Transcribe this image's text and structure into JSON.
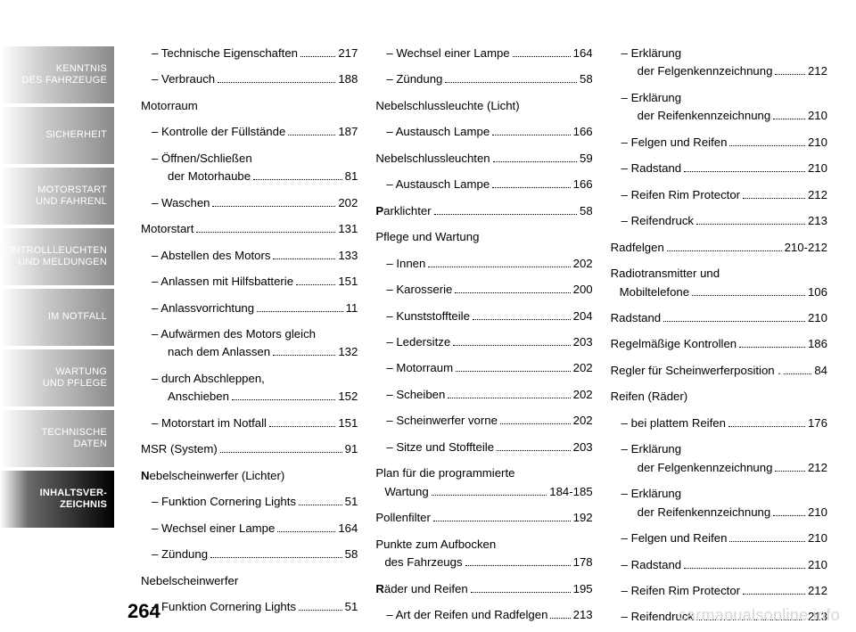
{
  "pagenum": "264",
  "watermark": "carmanualsonline.info",
  "sidebar": {
    "tabs": [
      {
        "label": "KENNTNIS\nDES FAHRZEUGE",
        "active": false
      },
      {
        "label": "SICHERHEIT",
        "active": false
      },
      {
        "label": "MOTORSTART\nUND FAHRENL",
        "active": false
      },
      {
        "label": "KONTROLLLEUCHTEN\nUND MELDUNGEN",
        "active": false
      },
      {
        "label": "IM NOTFALL",
        "active": false
      },
      {
        "label": "WARTUNG\nUND PFLEGE",
        "active": false
      },
      {
        "label": "TECHNISCHE\nDATEN",
        "active": false
      },
      {
        "label": "INHALTSVER-\nZEICHNIS",
        "active": true
      }
    ]
  },
  "columns": [
    [
      {
        "type": "sub",
        "label": "Technische Eigenschaften",
        "page": "217"
      },
      {
        "type": "sub",
        "label": "Verbrauch",
        "page": "188"
      },
      {
        "type": "section",
        "label": "Motorraum"
      },
      {
        "type": "sub",
        "label": "Kontrolle der Füllstände",
        "page": "187"
      },
      {
        "type": "sub-wrap",
        "label": "Öffnen/Schließen",
        "label2": "der Motorhaube",
        "page": "81"
      },
      {
        "type": "sub",
        "label": "Waschen",
        "page": "202"
      },
      {
        "type": "top",
        "label": "Motorstart",
        "page": "131"
      },
      {
        "type": "sub",
        "label": "Abstellen des Motors",
        "page": "133"
      },
      {
        "type": "sub",
        "label": "Anlassen mit Hilfsbatterie",
        "page": "151"
      },
      {
        "type": "sub",
        "label": "Anlassvorrichtung",
        "page": "11"
      },
      {
        "type": "sub-wrap",
        "label": "Aufwärmen des Motors gleich",
        "label2": "nach dem Anlassen",
        "page": "132"
      },
      {
        "type": "sub-wrap",
        "label": "durch Abschleppen,",
        "label2": "Anschieben",
        "page": "152"
      },
      {
        "type": "sub",
        "label": "Motorstart im Notfall",
        "page": "151"
      },
      {
        "type": "top",
        "label": "MSR (System)",
        "page": "91"
      },
      {
        "type": "section-cap",
        "cap": "N",
        "label": "ebelscheinwerfer (Lichter)"
      },
      {
        "type": "sub",
        "label": "Funktion Cornering Lights",
        "page": "51"
      },
      {
        "type": "sub",
        "label": "Wechsel einer Lampe",
        "page": "164"
      },
      {
        "type": "sub",
        "label": "Zündung",
        "page": "58"
      },
      {
        "type": "section",
        "label": "Nebelscheinwerfer"
      },
      {
        "type": "sub",
        "label": "Funktion Cornering Lights",
        "page": "51"
      }
    ],
    [
      {
        "type": "sub",
        "label": "Wechsel einer Lampe",
        "page": "164"
      },
      {
        "type": "sub",
        "label": "Zündung",
        "page": "58"
      },
      {
        "type": "section",
        "label": "Nebelschlussleuchte (Licht)"
      },
      {
        "type": "sub",
        "label": "Austausch Lampe",
        "page": "166"
      },
      {
        "type": "top",
        "label": "Nebelschlussleuchten",
        "page": "59"
      },
      {
        "type": "sub",
        "label": "Austausch Lampe",
        "page": "166"
      },
      {
        "type": "top-cap",
        "cap": "P",
        "label": "arklichter",
        "page": "58"
      },
      {
        "type": "section",
        "label": "Pflege und Wartung"
      },
      {
        "type": "sub",
        "label": "Innen",
        "page": "202"
      },
      {
        "type": "sub",
        "label": "Karosserie",
        "page": "200"
      },
      {
        "type": "sub",
        "label": "Kunststoffteile",
        "page": "204"
      },
      {
        "type": "sub",
        "label": "Ledersitze",
        "page": "203"
      },
      {
        "type": "sub",
        "label": "Motorraum",
        "page": "202"
      },
      {
        "type": "sub",
        "label": "Scheiben",
        "page": "202"
      },
      {
        "type": "sub",
        "label": "Scheinwerfer vorne",
        "page": "202"
      },
      {
        "type": "sub",
        "label": "Sitze und Stoffteile",
        "page": "203"
      },
      {
        "type": "top-wrap",
        "label": "Plan für die programmierte",
        "label2": "Wartung",
        "page": "184-185"
      },
      {
        "type": "top",
        "label": "Pollenfilter",
        "page": "192"
      },
      {
        "type": "top-wrap",
        "label": "Punkte zum Aufbocken",
        "label2": "des Fahrzeugs",
        "page": "178"
      },
      {
        "type": "top-cap",
        "cap": "R",
        "label": "äder und Reifen",
        "page": "195"
      },
      {
        "type": "sub",
        "label": "Art der Reifen und Radfelgen",
        "page": "213"
      }
    ],
    [
      {
        "type": "sub-wrap",
        "label": "Erklärung",
        "label2": "der Felgenkennzeichnung",
        "page": "212"
      },
      {
        "type": "sub-wrap",
        "label": "Erklärung",
        "label2": "der Reifenkennzeichnung",
        "page": "210"
      },
      {
        "type": "sub",
        "label": "Felgen und Reifen",
        "page": "210"
      },
      {
        "type": "sub",
        "label": "Radstand",
        "page": "210"
      },
      {
        "type": "sub",
        "label": "Reifen Rim Protector",
        "page": "212"
      },
      {
        "type": "sub",
        "label": "Reifendruck",
        "page": "213"
      },
      {
        "type": "top",
        "label": "Radfelgen",
        "page": "210-212"
      },
      {
        "type": "top-wrap",
        "label": "Radiotransmitter und",
        "label2": "Mobiltelefone",
        "page": "106"
      },
      {
        "type": "top",
        "label": "Radstand",
        "page": "210"
      },
      {
        "type": "top",
        "label": "Regelmäßige Kontrollen",
        "page": "186"
      },
      {
        "type": "top",
        "label": "Regler für Scheinwerferposition .",
        "page": "84"
      },
      {
        "type": "section",
        "label": "Reifen (Räder)"
      },
      {
        "type": "sub",
        "label": "bei plattem Reifen",
        "page": "176"
      },
      {
        "type": "sub-wrap",
        "label": "Erklärung",
        "label2": "der Felgenkennzeichnung",
        "page": "212"
      },
      {
        "type": "sub-wrap",
        "label": "Erklärung",
        "label2": "der Reifenkennzeichnung",
        "page": "210"
      },
      {
        "type": "sub",
        "label": "Felgen und Reifen",
        "page": "210"
      },
      {
        "type": "sub",
        "label": "Radstand",
        "page": "210"
      },
      {
        "type": "sub",
        "label": "Reifen Rim Protector",
        "page": "212"
      },
      {
        "type": "sub",
        "label": "Reifendruck",
        "page": "213"
      }
    ]
  ]
}
